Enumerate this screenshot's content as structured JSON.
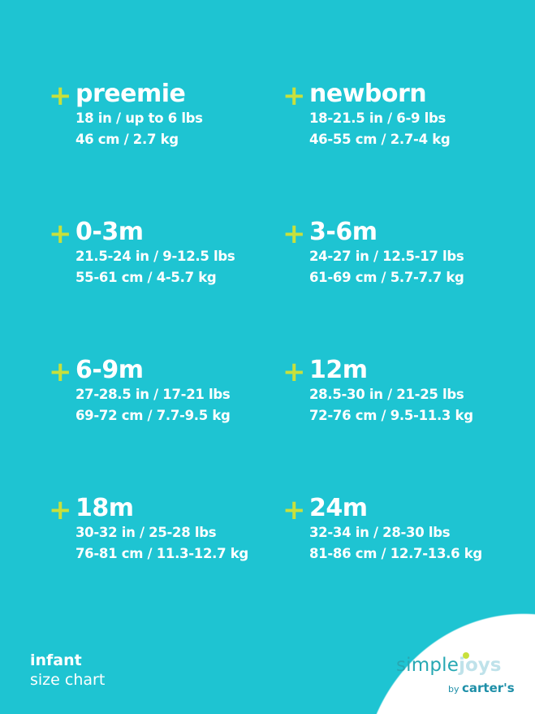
{
  "accent_color": "#c8e03c",
  "background_color": "#1ec4d2",
  "plus_symbol": "+",
  "sizes": [
    {
      "name": "preemie",
      "imperial": "18 in / up to 6 lbs",
      "metric": "46 cm / 2.7 kg"
    },
    {
      "name": "newborn",
      "imperial": "18-21.5 in / 6-9 lbs",
      "metric": "46-55 cm / 2.7-4 kg"
    },
    {
      "name": "0-3m",
      "imperial": "21.5-24 in / 9-12.5 lbs",
      "metric": "55-61 cm / 4-5.7 kg"
    },
    {
      "name": "3-6m",
      "imperial": "24-27 in / 12.5-17 lbs",
      "metric": "61-69 cm / 5.7-7.7 kg"
    },
    {
      "name": "6-9m",
      "imperial": "27-28.5 in / 17-21 lbs",
      "metric": "69-72 cm / 7.7-9.5 kg"
    },
    {
      "name": "12m",
      "imperial": "28.5-30 in / 21-25 lbs",
      "metric": "72-76 cm / 9.5-11.3 kg"
    },
    {
      "name": "18m",
      "imperial": "30-32 in / 25-28 lbs",
      "metric": "76-81 cm / 11.3-12.7 kg"
    },
    {
      "name": "24m",
      "imperial": "32-34 in / 28-30 lbs",
      "metric": "81-86 cm / 12.7-13.6 kg"
    }
  ],
  "chart_label": {
    "line1": "infant",
    "line2": "size chart"
  },
  "logo": {
    "simple": "simple",
    "joys": "joys",
    "by": "by",
    "brand": "carter's"
  }
}
